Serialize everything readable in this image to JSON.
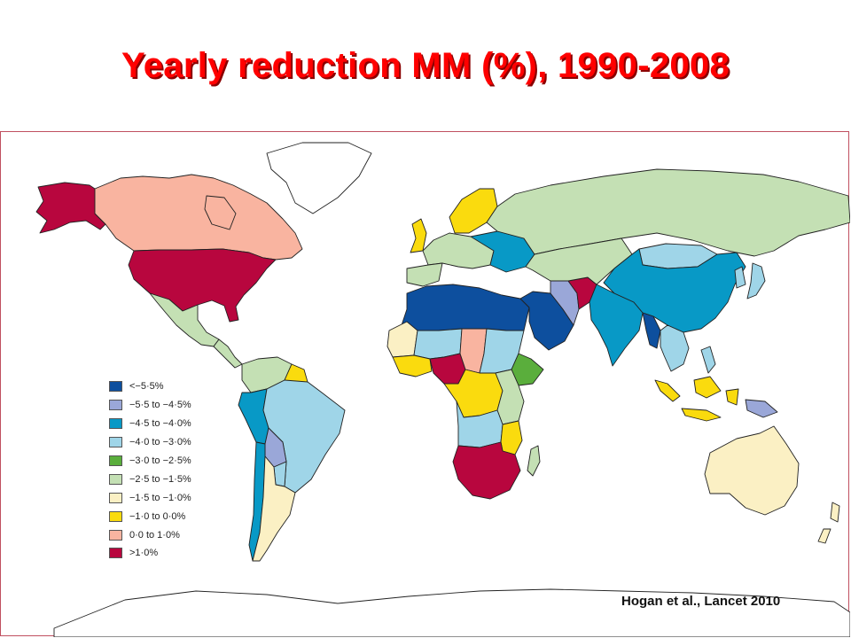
{
  "slide": {
    "title": "Yearly reduction MM (%), 1990-2008",
    "citation": "Hogan et al., Lancet 2010"
  },
  "legend": {
    "items": [
      {
        "label": "<−5·5%",
        "color": "#0d4f9e"
      },
      {
        "label": "−5·5 to −4·5%",
        "color": "#9aa7d8"
      },
      {
        "label": "−4·5 to −4·0%",
        "color": "#0899c6"
      },
      {
        "label": "−4·0 to −3·0%",
        "color": "#9fd5e8"
      },
      {
        "label": "−3·0 to −2·5%",
        "color": "#5aae3c"
      },
      {
        "label": "−2·5 to −1·5%",
        "color": "#c4e0b4"
      },
      {
        "label": "−1·5 to −1·0%",
        "color": "#fbf0c4"
      },
      {
        "label": "−1·0 to 0·0%",
        "color": "#fadb0e"
      },
      {
        "label": "0·0 to 1·0%",
        "color": "#f9b4a0"
      },
      {
        "label": ">1·0%",
        "color": "#b8063e"
      }
    ]
  },
  "regions": [
    {
      "name": "alaska",
      "color": "#b8063e"
    },
    {
      "name": "canada",
      "color": "#f9b4a0"
    },
    {
      "name": "united-states",
      "color": "#b8063e"
    },
    {
      "name": "mexico",
      "color": "#c4e0b4"
    },
    {
      "name": "central-america",
      "color": "#c4e0b4"
    },
    {
      "name": "colombia-venezuela",
      "color": "#c4e0b4"
    },
    {
      "name": "guyana",
      "color": "#fadb0e"
    },
    {
      "name": "ecuador-peru",
      "color": "#0899c6"
    },
    {
      "name": "brazil",
      "color": "#9fd5e8"
    },
    {
      "name": "bolivia",
      "color": "#9aa7d8"
    },
    {
      "name": "paraguay",
      "color": "#9fd5e8"
    },
    {
      "name": "chile",
      "color": "#0899c6"
    },
    {
      "name": "argentina",
      "color": "#fbf0c4"
    },
    {
      "name": "greenland",
      "color": "#ffffff"
    },
    {
      "name": "uk",
      "color": "#fadb0e"
    },
    {
      "name": "iberia",
      "color": "#c4e0b4"
    },
    {
      "name": "western-europe",
      "color": "#c4e0b4"
    },
    {
      "name": "scandinavia",
      "color": "#fadb0e"
    },
    {
      "name": "eastern-europe",
      "color": "#0899c6"
    },
    {
      "name": "russia",
      "color": "#c4e0b4"
    },
    {
      "name": "north-africa",
      "color": "#0d4f9e"
    },
    {
      "name": "west-africa-sahel",
      "color": "#9fd5e8"
    },
    {
      "name": "mauritania",
      "color": "#fbf0c4"
    },
    {
      "name": "nigeria",
      "color": "#b8063e"
    },
    {
      "name": "west-coast-africa",
      "color": "#fadb0e"
    },
    {
      "name": "chad",
      "color": "#f9b4a0"
    },
    {
      "name": "sudan",
      "color": "#9fd5e8"
    },
    {
      "name": "ethiopia",
      "color": "#5aae3c"
    },
    {
      "name": "central-africa",
      "color": "#fadb0e"
    },
    {
      "name": "east-africa",
      "color": "#c4e0b4"
    },
    {
      "name": "angola-zambia",
      "color": "#9fd5e8"
    },
    {
      "name": "mozambique",
      "color": "#fadb0e"
    },
    {
      "name": "southern-africa",
      "color": "#b8063e"
    },
    {
      "name": "madagascar",
      "color": "#c4e0b4"
    },
    {
      "name": "middle-east",
      "color": "#0d4f9e"
    },
    {
      "name": "iran",
      "color": "#9aa7d8"
    },
    {
      "name": "afghanistan",
      "color": "#b8063e"
    },
    {
      "name": "central-asia",
      "color": "#c4e0b4"
    },
    {
      "name": "india",
      "color": "#0899c6"
    },
    {
      "name": "china",
      "color": "#0899c6"
    },
    {
      "name": "mongolia",
      "color": "#9fd5e8"
    },
    {
      "name": "korea-japan",
      "color": "#9fd5e8"
    },
    {
      "name": "myanmar",
      "color": "#0d4f9e"
    },
    {
      "name": "southeast-asia",
      "color": "#9fd5e8"
    },
    {
      "name": "indonesia",
      "color": "#fadb0e"
    },
    {
      "name": "papua",
      "color": "#9aa7d8"
    },
    {
      "name": "australia",
      "color": "#fbf0c4"
    },
    {
      "name": "new-zealand",
      "color": "#fbf0c4"
    },
    {
      "name": "antarctica",
      "color": "#ffffff"
    }
  ]
}
